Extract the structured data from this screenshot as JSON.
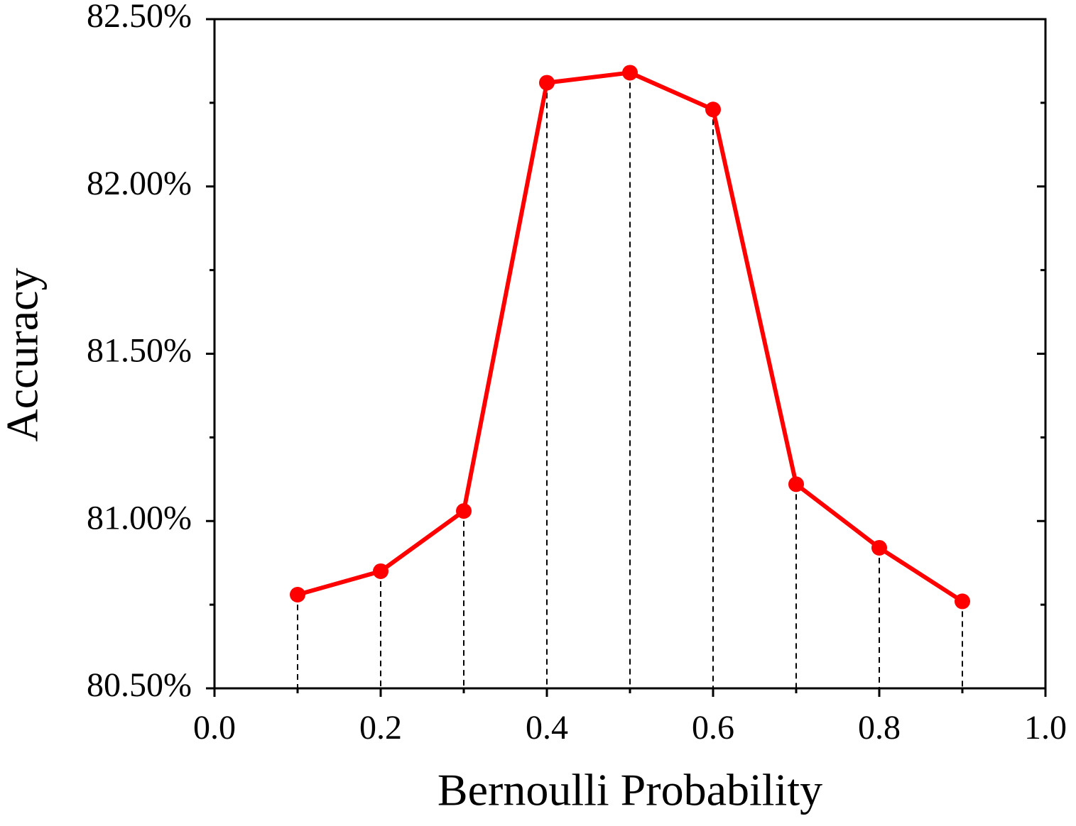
{
  "chart_data": {
    "type": "line",
    "x_label": "Bernoulli Probability",
    "y_label": "Accuracy",
    "x": [
      0.1,
      0.2,
      0.3,
      0.4,
      0.5,
      0.6,
      0.7,
      0.8,
      0.9
    ],
    "series": [
      {
        "color": "#ff0000",
        "values": [
          80.78,
          80.85,
          81.03,
          82.31,
          82.34,
          82.23,
          81.11,
          80.92,
          80.76
        ]
      }
    ],
    "xlim": [
      0,
      1
    ],
    "xticks": [
      {
        "value": 0,
        "label": "0.0"
      },
      0.2,
      0.4,
      0.6,
      0.8,
      {
        "value": 1,
        "label": "1.0"
      }
    ],
    "ylim": [
      80.5,
      82.5
    ],
    "yticks": [
      {
        "value": 80.5,
        "label": "80.50%"
      },
      {
        "value": 81,
        "label": "81.00%"
      },
      {
        "value": 81.5,
        "label": "81.50%"
      },
      {
        "value": 82,
        "label": "82.00%"
      },
      {
        "value": 82.5,
        "label": "82.50%"
      }
    ],
    "grid": false,
    "drop_lines": true
  }
}
